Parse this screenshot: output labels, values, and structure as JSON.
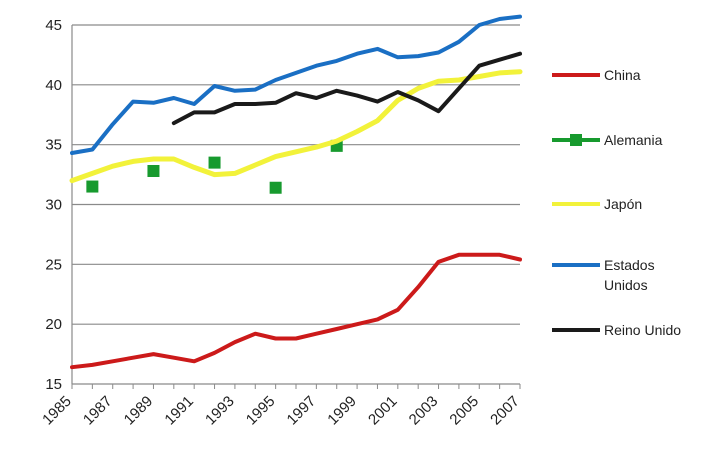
{
  "chart_data": {
    "type": "line",
    "title": "",
    "xlabel": "",
    "ylabel": "",
    "ylim": [
      15,
      45
    ],
    "yticks": [
      15,
      20,
      25,
      30,
      35,
      40,
      45
    ],
    "xlim": [
      1985,
      2007
    ],
    "xticks": [
      1985,
      1987,
      1989,
      1991,
      1993,
      1995,
      1997,
      1999,
      2001,
      2003,
      2005,
      2007
    ],
    "grid": "horizontal",
    "legend_position": "right",
    "series": [
      {
        "name": "China",
        "color": "#cc1a1a",
        "style": "line",
        "x": [
          1985,
          1986,
          1987,
          1988,
          1989,
          1990,
          1991,
          1992,
          1993,
          1994,
          1995,
          1996,
          1997,
          1998,
          1999,
          2000,
          2001,
          2002,
          2003,
          2004,
          2005,
          2006,
          2007
        ],
        "values": [
          16.4,
          16.6,
          16.9,
          17.2,
          17.5,
          17.2,
          16.9,
          17.6,
          18.5,
          19.2,
          18.8,
          18.8,
          19.2,
          19.6,
          20.0,
          20.4,
          21.2,
          23.1,
          25.2,
          25.8,
          25.8,
          25.8,
          25.4
        ]
      },
      {
        "name": "Alemania",
        "color": "#179a2e",
        "style": "markers",
        "x": [
          1986,
          1989,
          1992,
          1995,
          1998
        ],
        "values": [
          31.5,
          32.8,
          33.5,
          31.4,
          34.9
        ]
      },
      {
        "name": "Japón",
        "color": "#f2f23a",
        "style": "line",
        "x": [
          1985,
          1986,
          1987,
          1988,
          1989,
          1990,
          1991,
          1992,
          1993,
          1994,
          1995,
          1996,
          1997,
          1998,
          1999,
          2000,
          2001,
          2002,
          2003,
          2004,
          2005,
          2006,
          2007
        ],
        "values": [
          32.0,
          32.6,
          33.2,
          33.6,
          33.8,
          33.8,
          33.1,
          32.5,
          32.6,
          33.3,
          34.0,
          34.4,
          34.8,
          35.3,
          36.1,
          37.0,
          38.7,
          39.7,
          40.3,
          40.4,
          40.7,
          41.0,
          41.1
        ]
      },
      {
        "name": "Estados Unidos",
        "name_lines": [
          "Estados",
          "Unidos"
        ],
        "color": "#1a6fc4",
        "style": "line",
        "x": [
          1985,
          1986,
          1987,
          1988,
          1989,
          1990,
          1991,
          1992,
          1993,
          1994,
          1995,
          1996,
          1997,
          1998,
          1999,
          2000,
          2001,
          2002,
          2003,
          2004,
          2005,
          2006,
          2007
        ],
        "values": [
          34.3,
          34.6,
          36.7,
          38.6,
          38.5,
          38.9,
          38.4,
          39.9,
          39.5,
          39.6,
          40.4,
          41.0,
          41.6,
          42.0,
          42.6,
          43.0,
          42.3,
          42.4,
          42.7,
          43.6,
          45.0,
          45.5,
          45.7
        ]
      },
      {
        "name": "Reino Unido",
        "color": "#1a1a1a",
        "style": "line",
        "x": [
          1990,
          1991,
          1992,
          1993,
          1994,
          1995,
          1996,
          1997,
          1998,
          1999,
          2000,
          2001,
          2002,
          2003,
          2004,
          2005,
          2006,
          2007
        ],
        "values": [
          36.8,
          37.7,
          37.7,
          38.4,
          38.4,
          38.5,
          39.3,
          38.9,
          39.5,
          39.1,
          38.6,
          39.4,
          38.7,
          37.8,
          39.7,
          41.6,
          42.1,
          42.6
        ]
      }
    ]
  }
}
